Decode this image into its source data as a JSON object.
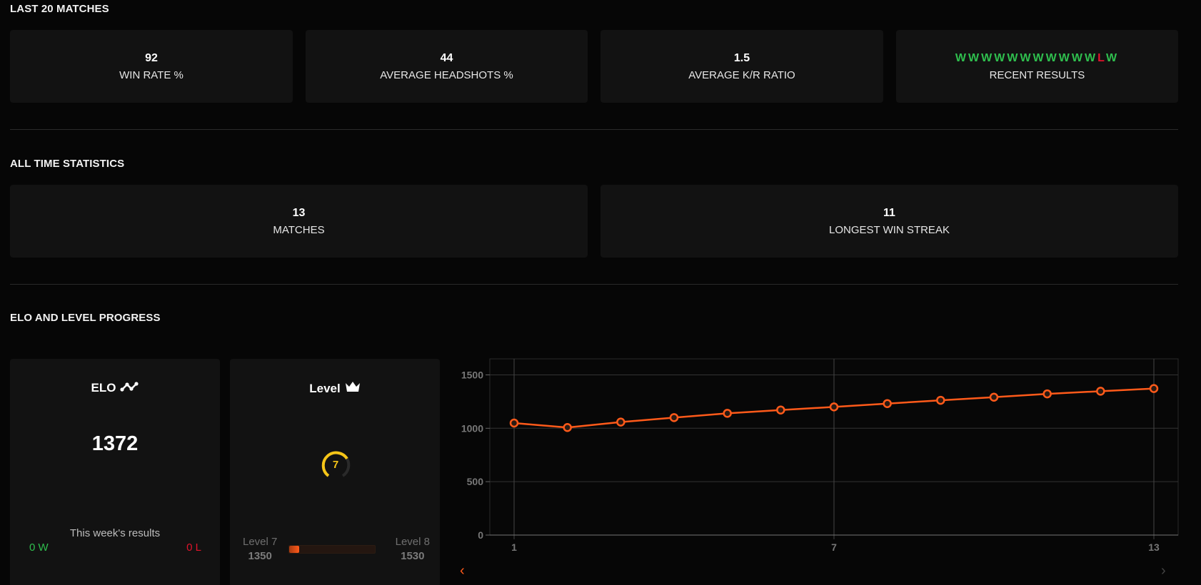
{
  "sections": {
    "last20": "LAST 20 MATCHES",
    "alltime": "ALL TIME STATISTICS",
    "elo": "ELO AND LEVEL PROGRESS"
  },
  "last20_cards": [
    {
      "value": "92",
      "label": "WIN RATE %"
    },
    {
      "value": "44",
      "label": "AVERAGE HEADSHOTS %"
    },
    {
      "value": "1.5",
      "label": "AVERAGE K/R RATIO"
    }
  ],
  "recent_results": {
    "label": "RECENT RESULTS",
    "items": [
      "W",
      "W",
      "W",
      "W",
      "W",
      "W",
      "W",
      "W",
      "W",
      "W",
      "W",
      "L",
      "W"
    ]
  },
  "alltime_cards": [
    {
      "value": "13",
      "label": "MATCHES"
    },
    {
      "value": "11",
      "label": "LONGEST WIN STREAK"
    }
  ],
  "elo_card": {
    "title": "ELO",
    "icon": "trend-icon",
    "value": "1372",
    "week_label": "This week's results",
    "wins": "0 W",
    "losses": "0 L"
  },
  "level_card": {
    "title": "Level",
    "icon": "crown-icon",
    "level": "7",
    "current_label": "Level 7",
    "current_elo": "1350",
    "next_label": "Level 8",
    "next_elo": "1530",
    "progress_pct": 12
  },
  "colors": {
    "win": "#2fbf4e",
    "loss": "#e0142b",
    "accent": "#ff5a1a",
    "level": "#f5c518"
  },
  "chart_nav": {
    "prev": "‹",
    "next": "›"
  },
  "chart_data": {
    "type": "line",
    "title": "",
    "xlabel": "",
    "ylabel": "",
    "x": [
      1,
      2,
      3,
      4,
      5,
      6,
      7,
      8,
      9,
      10,
      11,
      12,
      13
    ],
    "x_tick_labels": [
      "1",
      "7",
      "13"
    ],
    "y_ticks": [
      0,
      500,
      1000,
      1500
    ],
    "ylim": [
      0,
      1650
    ],
    "grid": true,
    "legend": "none",
    "series": [
      {
        "name": "ELO",
        "color": "#ff5a1a",
        "values": [
          1049,
          1007,
          1058,
          1100,
          1140,
          1171,
          1200,
          1231,
          1262,
          1291,
          1322,
          1347,
          1372
        ]
      }
    ]
  }
}
